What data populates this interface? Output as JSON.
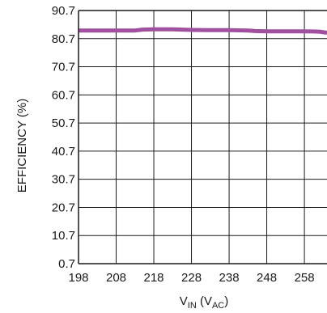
{
  "chart_data": {
    "type": "line",
    "title": "",
    "ylabel": "EFFICIENCY (%)",
    "xlabel": {
      "base": "V",
      "base_sub": "IN",
      "unit_open": " (V",
      "unit_sub": "AC",
      "unit_close": ")"
    },
    "xlim": [
      198,
      264
    ],
    "ylim": [
      0.7,
      90.7
    ],
    "x_ticks": [
      198,
      208,
      218,
      228,
      238,
      248,
      258
    ],
    "y_ticks": [
      0.7,
      10.7,
      20.7,
      30.7,
      40.7,
      50.7,
      60.7,
      70.7,
      80.7,
      90.7
    ],
    "x_tick_labels": [
      "198",
      "208",
      "218",
      "228",
      "238",
      "248",
      "258"
    ],
    "y_tick_labels": [
      "0.7",
      "10.7",
      "20.7",
      "30.7",
      "40.7",
      "50.7",
      "60.7",
      "70.7",
      "80.7",
      "90.7"
    ],
    "grid": true,
    "series": [
      {
        "color": "#a0509f",
        "x": [
          198,
          208,
          213,
          215,
          218,
          223,
          228,
          233,
          238,
          243,
          245,
          248,
          253,
          258,
          262,
          264
        ],
        "y": [
          83.6,
          83.6,
          83.6,
          83.9,
          84.0,
          84.0,
          83.8,
          83.7,
          83.7,
          83.6,
          83.4,
          83.3,
          83.3,
          83.3,
          83.2,
          82.8
        ]
      }
    ]
  }
}
